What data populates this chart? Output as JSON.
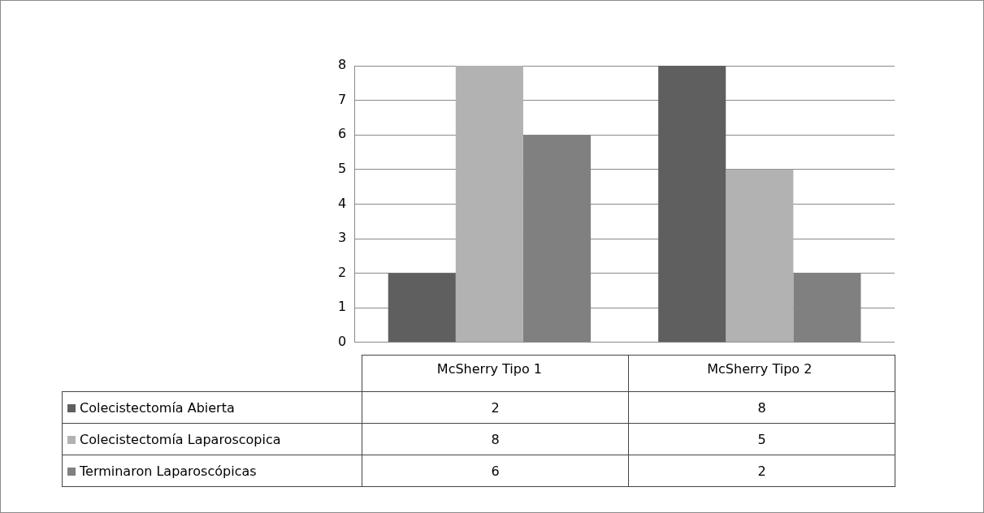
{
  "chart_data": {
    "type": "bar",
    "categories": [
      "McSherry Tipo 1",
      "McSherry Tipo 2"
    ],
    "series": [
      {
        "name": "Colecistectomía Abierta",
        "color": "#5f5f5f",
        "values": [
          2,
          8
        ]
      },
      {
        "name": "Colecistectomía Laparoscopica",
        "color": "#b2b2b2",
        "values": [
          8,
          5
        ]
      },
      {
        "name": "Terminaron Laparoscópicas",
        "color": "#808080",
        "values": [
          6,
          2
        ]
      }
    ],
    "ylim": [
      0,
      8
    ],
    "yticks": [
      0,
      1,
      2,
      3,
      4,
      5,
      6,
      7,
      8
    ],
    "grid": "y",
    "legend": "bottom",
    "data_labels": true
  }
}
